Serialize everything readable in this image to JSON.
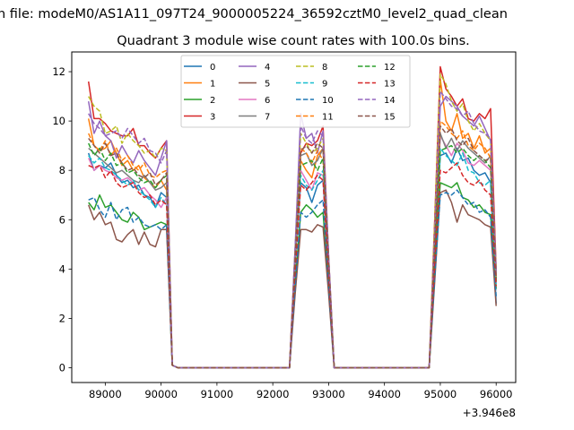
{
  "chart_data": {
    "type": "line",
    "suptitle": "n file: modeM0/AS1A11_097T24_9000005224_36592cztM0_level2_quad_clean",
    "title": "Quadrant 3 module wise count rates with 100.0s bins.",
    "xlabel": "",
    "ylabel": "",
    "x_offset_label": "+3.946e8",
    "xlim": [
      88400,
      96350
    ],
    "ylim": [
      -0.6,
      12.8
    ],
    "xticks": [
      89000,
      90000,
      91000,
      92000,
      93000,
      94000,
      95000,
      96000
    ],
    "yticks": [
      0,
      2,
      4,
      6,
      8,
      10,
      12
    ],
    "legend_placement": "top-center",
    "legend_columns": 4,
    "x": [
      88700,
      88800,
      88900,
      89000,
      89100,
      89200,
      89300,
      89400,
      89500,
      89600,
      89700,
      89800,
      89900,
      90000,
      90100,
      90200,
      90300,
      92200,
      92300,
      92400,
      92500,
      92600,
      92700,
      92800,
      92900,
      93000,
      93100,
      94700,
      94800,
      94900,
      95000,
      95100,
      95200,
      95300,
      95400,
      95500,
      95600,
      95700,
      95800,
      95900,
      96000
    ],
    "series": [
      {
        "name": "0",
        "color": "#1f77b4",
        "dash": false,
        "values": [
          8.7,
          8.0,
          8.2,
          8.1,
          8.3,
          7.8,
          7.5,
          7.6,
          7.3,
          7.4,
          7.0,
          6.9,
          6.5,
          7.1,
          6.9,
          0.1,
          0,
          0,
          0,
          4.3,
          7.5,
          7.3,
          6.7,
          7.4,
          7.6,
          3.9,
          0,
          0,
          0,
          4.6,
          8.6,
          8.7,
          8.3,
          8.9,
          8.4,
          8.5,
          8.0,
          7.8,
          7.9,
          7.5,
          2.6
        ]
      },
      {
        "name": "1",
        "color": "#ff7f0e",
        "dash": false,
        "values": [
          10.1,
          9.0,
          8.8,
          8.9,
          9.2,
          8.7,
          8.2,
          8.4,
          8.0,
          8.2,
          7.7,
          7.5,
          7.3,
          7.6,
          7.2,
          0.1,
          0,
          0,
          0,
          4.6,
          8.4,
          8.0,
          7.7,
          8.6,
          8.9,
          4.2,
          0,
          0,
          0,
          5.3,
          11.7,
          10.0,
          9.6,
          10.3,
          9.3,
          9.5,
          8.9,
          9.4,
          8.7,
          8.9,
          3.5
        ]
      },
      {
        "name": "2",
        "color": "#2ca02c",
        "dash": false,
        "values": [
          6.7,
          6.4,
          7.0,
          6.5,
          6.6,
          6.3,
          6.0,
          5.9,
          6.3,
          6.1,
          5.6,
          5.7,
          5.8,
          5.9,
          5.8,
          0.1,
          0,
          0,
          0,
          3.4,
          6.3,
          6.6,
          6.4,
          6.1,
          6.3,
          3.2,
          0,
          0,
          0,
          3.9,
          7.5,
          7.4,
          7.3,
          7.5,
          6.9,
          6.8,
          6.5,
          6.6,
          6.3,
          6.2,
          3.2
        ]
      },
      {
        "name": "3",
        "color": "#d62728",
        "dash": false,
        "values": [
          11.6,
          10.1,
          10.1,
          9.9,
          9.6,
          9.5,
          9.4,
          9.4,
          9.7,
          9.0,
          9.0,
          8.7,
          8.5,
          8.9,
          9.2,
          0.1,
          0,
          0,
          0,
          4.8,
          8.7,
          9.1,
          9.0,
          9.2,
          9.8,
          4.5,
          0,
          0,
          0,
          6.0,
          12.2,
          11.3,
          11.0,
          10.6,
          10.9,
          10.1,
          10.0,
          10.3,
          10.1,
          10.5,
          4.0
        ]
      },
      {
        "name": "4",
        "color": "#9467bd",
        "dash": false,
        "values": [
          10.8,
          9.5,
          10.0,
          9.4,
          9.2,
          8.5,
          9.0,
          8.6,
          8.3,
          8.8,
          8.4,
          8.1,
          7.8,
          8.5,
          9.2,
          0.1,
          0,
          0,
          0,
          4.9,
          10.3,
          9.3,
          9.5,
          8.7,
          9.6,
          4.5,
          0,
          0,
          0,
          5.4,
          10.6,
          11.0,
          10.8,
          10.6,
          10.2,
          10.0,
          9.8,
          10.2,
          9.7,
          9.2,
          3.8
        ]
      },
      {
        "name": "5",
        "color": "#8c564b",
        "dash": false,
        "values": [
          6.6,
          6.0,
          6.3,
          5.8,
          5.9,
          5.2,
          5.1,
          5.4,
          5.6,
          5.0,
          5.5,
          5.0,
          4.9,
          5.6,
          5.6,
          0.1,
          0,
          0,
          0,
          3.0,
          5.6,
          5.6,
          5.5,
          5.8,
          5.7,
          3.0,
          0,
          0,
          0,
          3.5,
          7.1,
          7.2,
          6.7,
          5.9,
          6.6,
          6.2,
          6.1,
          6.0,
          5.8,
          5.7,
          2.5
        ]
      },
      {
        "name": "6",
        "color": "#e377c2",
        "dash": false,
        "values": [
          8.5,
          8.0,
          8.2,
          8.0,
          7.9,
          7.7,
          7.6,
          7.7,
          7.5,
          7.2,
          7.3,
          7.0,
          6.8,
          6.5,
          6.9,
          0.1,
          0,
          0,
          0,
          4.2,
          8.0,
          7.6,
          7.2,
          7.9,
          7.8,
          4.0,
          0,
          0,
          0,
          4.8,
          9.4,
          9.0,
          8.6,
          9.1,
          8.8,
          8.3,
          8.2,
          8.4,
          8.2,
          8.0,
          3.4
        ]
      },
      {
        "name": "7",
        "color": "#7f7f7f",
        "dash": false,
        "values": [
          8.9,
          8.7,
          8.5,
          8.3,
          8.1,
          7.9,
          8.0,
          7.8,
          7.6,
          7.5,
          7.8,
          7.5,
          7.2,
          7.3,
          7.5,
          0.1,
          0,
          0,
          0,
          4.4,
          8.6,
          8.7,
          8.2,
          8.4,
          8.9,
          4.3,
          0,
          0,
          0,
          4.9,
          9.5,
          8.9,
          9.3,
          8.8,
          9.2,
          8.9,
          8.7,
          8.5,
          8.3,
          8.6,
          3.6
        ]
      },
      {
        "name": "8",
        "color": "#bcbd22",
        "dash": true,
        "values": [
          11.0,
          10.6,
          10.4,
          9.5,
          9.6,
          9.8,
          9.1,
          9.5,
          9.2,
          9.0,
          8.7,
          8.8,
          8.5,
          8.9,
          8.8,
          0.1,
          0,
          0,
          0,
          4.7,
          9.5,
          9.1,
          8.7,
          8.9,
          9.3,
          4.4,
          0,
          0,
          0,
          5.9,
          11.9,
          11.5,
          10.8,
          10.4,
          10.7,
          10.0,
          9.6,
          9.9,
          9.5,
          9.2,
          3.9
        ]
      },
      {
        "name": "9",
        "color": "#17becf",
        "dash": true,
        "values": [
          8.6,
          8.3,
          8.5,
          8.1,
          8.0,
          7.8,
          7.6,
          7.4,
          7.6,
          7.2,
          7.0,
          6.8,
          6.5,
          6.9,
          6.6,
          0.1,
          0,
          0,
          0,
          4.0,
          7.8,
          7.4,
          7.2,
          7.6,
          8.0,
          3.9,
          0,
          0,
          0,
          4.5,
          8.9,
          8.6,
          8.4,
          8.2,
          8.7,
          8.0,
          7.9,
          7.5,
          7.4,
          7.6,
          3.3
        ]
      },
      {
        "name": "10",
        "color": "#1f77b4",
        "dash": true,
        "values": [
          6.8,
          6.9,
          6.4,
          6.1,
          6.7,
          6.0,
          6.4,
          6.5,
          5.9,
          6.1,
          5.8,
          5.7,
          5.8,
          5.6,
          5.8,
          0.1,
          0,
          0,
          0,
          3.3,
          6.3,
          6.1,
          6.3,
          6.6,
          6.8,
          3.4,
          0,
          0,
          0,
          3.7,
          7.0,
          7.1,
          7.0,
          7.2,
          6.9,
          6.6,
          6.7,
          6.3,
          6.4,
          6.1,
          2.9
        ]
      },
      {
        "name": "11",
        "color": "#ff7f0e",
        "dash": true,
        "values": [
          9.5,
          9.0,
          8.8,
          9.2,
          8.6,
          8.9,
          8.4,
          8.6,
          8.2,
          8.0,
          8.3,
          7.8,
          7.7,
          7.9,
          8.0,
          0.1,
          0,
          0,
          0,
          4.5,
          8.9,
          8.7,
          8.3,
          8.8,
          8.4,
          4.2,
          0,
          0,
          0,
          5.1,
          10.0,
          9.8,
          9.5,
          9.3,
          9.6,
          9.0,
          8.8,
          9.1,
          8.9,
          8.5,
          3.7
        ]
      },
      {
        "name": "12",
        "color": "#2ca02c",
        "dash": true,
        "values": [
          9.1,
          8.6,
          8.9,
          8.4,
          8.7,
          8.2,
          8.3,
          7.9,
          8.0,
          7.7,
          7.5,
          7.6,
          7.3,
          7.6,
          7.8,
          0.1,
          0,
          0,
          0,
          4.2,
          8.2,
          8.3,
          8.4,
          8.0,
          8.5,
          4.1,
          0,
          0,
          0,
          4.6,
          8.8,
          8.9,
          9.0,
          8.7,
          8.9,
          8.6,
          8.4,
          8.6,
          8.4,
          8.1,
          3.5
        ]
      },
      {
        "name": "13",
        "color": "#d62728",
        "dash": true,
        "values": [
          8.2,
          8.1,
          8.2,
          7.7,
          8.0,
          7.5,
          7.3,
          7.4,
          7.5,
          7.1,
          6.9,
          7.0,
          6.6,
          6.8,
          6.6,
          0.1,
          0,
          0,
          0,
          3.9,
          7.4,
          7.2,
          7.5,
          7.8,
          7.6,
          3.8,
          0,
          0,
          0,
          4.3,
          8.0,
          7.9,
          8.1,
          8.3,
          7.8,
          7.5,
          7.4,
          7.6,
          7.2,
          7.0,
          3.3
        ]
      },
      {
        "name": "14",
        "color": "#9467bd",
        "dash": true,
        "values": [
          10.3,
          9.9,
          9.7,
          9.4,
          9.5,
          9.6,
          9.3,
          9.7,
          9.4,
          9.1,
          9.3,
          8.8,
          8.7,
          8.3,
          8.8,
          0.1,
          0,
          0,
          0,
          4.8,
          9.8,
          9.3,
          9.1,
          9.6,
          9.4,
          4.5,
          0,
          0,
          0,
          5.5,
          11.2,
          10.9,
          10.6,
          10.5,
          10.2,
          10.4,
          9.9,
          9.6,
          9.5,
          9.3,
          3.9
        ]
      },
      {
        "name": "15",
        "color": "#8c564b",
        "dash": true,
        "values": [
          9.3,
          9.0,
          8.7,
          9.1,
          8.6,
          8.7,
          8.3,
          8.0,
          8.1,
          7.8,
          7.7,
          7.9,
          7.4,
          7.6,
          7.9,
          0.1,
          0,
          0,
          0,
          4.5,
          8.8,
          9.0,
          8.7,
          9.1,
          8.9,
          4.3,
          0,
          0,
          0,
          5.0,
          9.8,
          9.5,
          9.7,
          9.2,
          9.0,
          9.3,
          8.8,
          8.6,
          8.4,
          8.5,
          3.6
        ]
      }
    ]
  }
}
